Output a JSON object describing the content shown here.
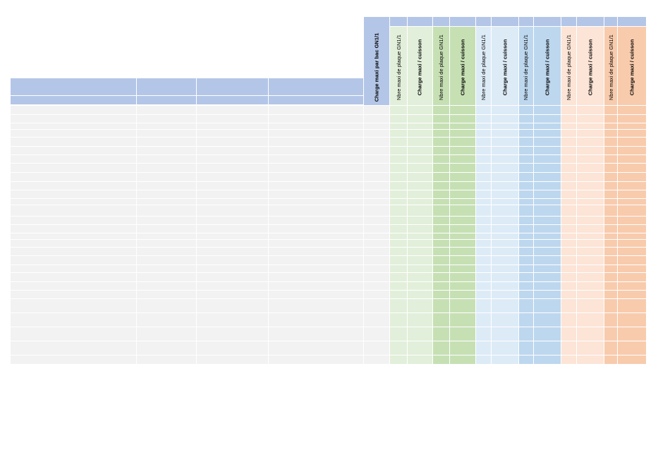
{
  "page": {
    "background": "#ffffff"
  },
  "colors": {
    "blue_header": "#b4c6e7",
    "gray_row": "#f2f2f2",
    "green_light": "#e2efda",
    "green_dark": "#c6e0b4",
    "blue_light": "#ddebf7",
    "blue_dark": "#bdd7ee",
    "orange_light": "#fce4d6",
    "orange_dark": "#f8cbad"
  },
  "header": {
    "charge_maxi_bac": "Charge maxi par bac GN1/1",
    "groups": [
      {
        "nbre_label": "Nbre maxi de plaque GN1/1",
        "charge_label": "Charge maxi / cuisson"
      },
      {
        "nbre_label": "Nbre maxi de plaque GN1/1",
        "charge_label": "Charge maxi / cuisson"
      },
      {
        "nbre_label": "Nbre maxi de plaque GN1/1",
        "charge_label": "Charge maxi / cuisson"
      },
      {
        "nbre_label": "Nbre maxi de plaque GN1/1",
        "charge_label": "Charge maxi / cuisson"
      },
      {
        "nbre_label": "Nbre maxi de plaque GN1/1",
        "charge_label": "Charge maxi / cuisson"
      },
      {
        "nbre_label": "Nbre maxi de plaque GN1/1",
        "charge_label": "Charge maxi / cuisson"
      }
    ]
  },
  "table": {
    "row_count": 29
  }
}
